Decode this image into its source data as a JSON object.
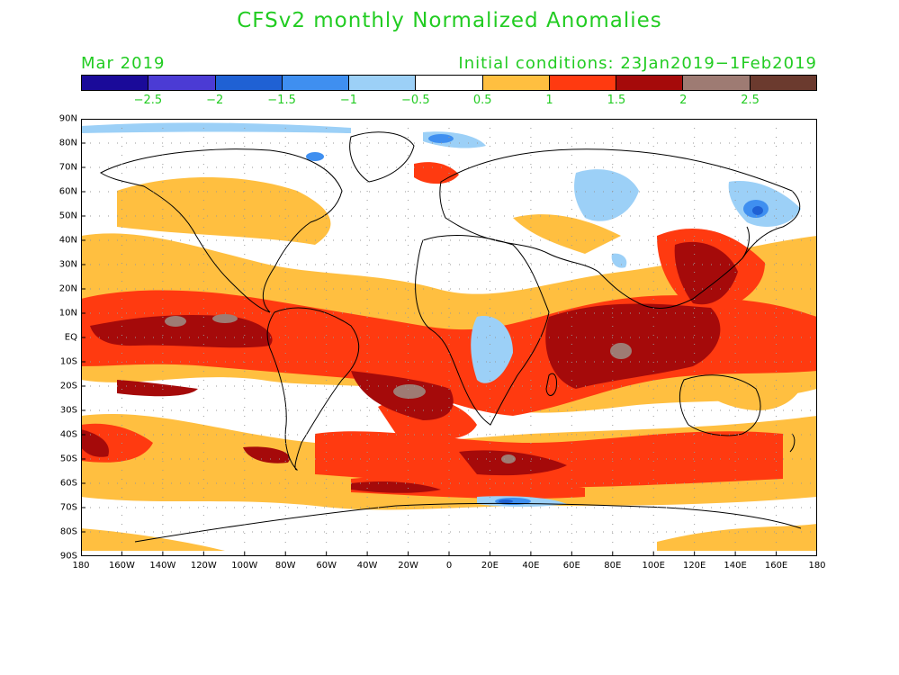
{
  "title": "CFSv2 monthly Normalized Anomalies",
  "subtitle_left": "Mar 2019",
  "subtitle_right": "Initial conditions: 23Jan2019−1Feb2019",
  "colorbar": {
    "colors": [
      "#1a0a99",
      "#4b3bd4",
      "#1f61d4",
      "#3f8ff0",
      "#9cd0f7",
      "#ffffff",
      "#ffbf40",
      "#ff3a10",
      "#a50a0a",
      "#9e7b73",
      "#6b3a2e"
    ],
    "labels": [
      "−2.5",
      "−2",
      "−1.5",
      "−1",
      "−0.5",
      "0.5",
      "1",
      "1.5",
      "2",
      "2.5"
    ]
  },
  "axes": {
    "lat_labels": [
      "90N",
      "80N",
      "70N",
      "60N",
      "50N",
      "40N",
      "30N",
      "20N",
      "10N",
      "EQ",
      "10S",
      "20S",
      "30S",
      "40S",
      "50S",
      "60S",
      "70S",
      "80S",
      "90S"
    ],
    "lon_labels": [
      "180",
      "160W",
      "140W",
      "120W",
      "100W",
      "80W",
      "60W",
      "40W",
      "20W",
      "0",
      "20E",
      "40E",
      "60E",
      "80E",
      "100E",
      "120E",
      "140E",
      "160E",
      "180"
    ]
  },
  "chart_data": {
    "type": "heatmap",
    "variable": "Normalized Anomalies",
    "model": "CFSv2",
    "valid_month": "Mar 2019",
    "initial_conditions": "23Jan2019−1Feb2019",
    "lon_range": [
      -180,
      180
    ],
    "lat_range": [
      -90,
      90
    ],
    "levels": [
      -2.5,
      -2,
      -1.5,
      -1,
      -0.5,
      0.5,
      1,
      1.5,
      2,
      2.5
    ],
    "regions": [
      {
        "lon": [
          -180,
          -80
        ],
        "lat": [
          -5,
          12
        ],
        "anomaly": 2.2
      },
      {
        "lon": [
          -40,
          10
        ],
        "lat": [
          -30,
          -5
        ],
        "anomaly": 2.0
      },
      {
        "lon": [
          50,
          140
        ],
        "lat": [
          -20,
          15
        ],
        "anomaly": 2.2
      },
      {
        "lon": [
          120,
          160
        ],
        "lat": [
          20,
          45
        ],
        "anomaly": 2.0
      },
      {
        "lon": [
          -180,
          180
        ],
        "lat": [
          -60,
          -35
        ],
        "anomaly": 1.5
      },
      {
        "lon": [
          140,
          160
        ],
        "lat": [
          45,
          55
        ],
        "anomaly": -2.0
      },
      {
        "lon": [
          20,
          40
        ],
        "lat": [
          -72,
          -64
        ],
        "anomaly": -1.5
      }
    ]
  }
}
